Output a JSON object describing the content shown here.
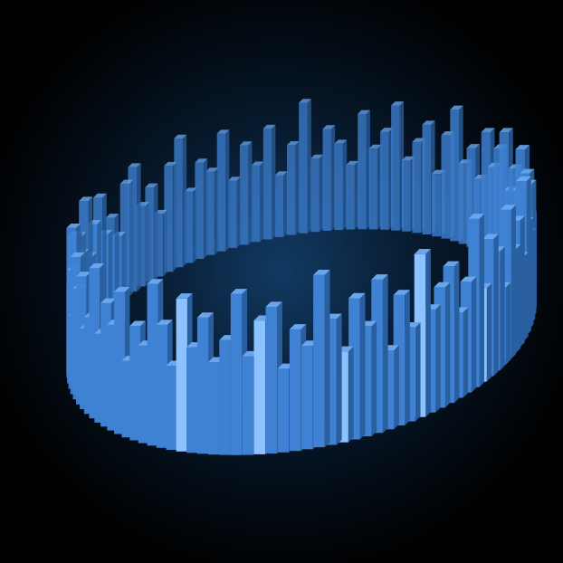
{
  "visualization": {
    "kind": "3d-circular-audio-spectrum",
    "bar_count": 120,
    "bar_levels": [
      0.62,
      0.31,
      0.48,
      0.77,
      0.42,
      0.55,
      0.91,
      0.36,
      0.68,
      0.5,
      0.84,
      0.29,
      0.6,
      0.73,
      0.4,
      0.95,
      0.52,
      0.33,
      0.7,
      0.58,
      0.45,
      0.88,
      0.38,
      0.64,
      0.27,
      0.8,
      0.49,
      0.71,
      0.35,
      0.6,
      0.93,
      0.44,
      0.57,
      0.3,
      0.75,
      0.66,
      0.41,
      0.86,
      0.53,
      0.37,
      0.69,
      0.47,
      0.82,
      0.32,
      0.61,
      0.9,
      0.43,
      0.56,
      0.28,
      0.78,
      0.51,
      0.65,
      0.39,
      0.87,
      0.46,
      0.34,
      0.72,
      0.59,
      0.81,
      0.3,
      0.63,
      0.94,
      0.4,
      0.54,
      0.76,
      0.33,
      0.67,
      0.48,
      0.89,
      0.36,
      0.6,
      0.79,
      0.42,
      0.52,
      0.31,
      0.74,
      0.85,
      0.45,
      0.58,
      0.29,
      0.7,
      0.92,
      0.38,
      0.62,
      0.5,
      0.83,
      0.35,
      0.66,
      0.44,
      0.77,
      0.3,
      0.57,
      0.96,
      0.41,
      0.68,
      0.53,
      0.32,
      0.8,
      0.47,
      0.63,
      0.88,
      0.37,
      0.55,
      0.72,
      0.28,
      0.65,
      0.9,
      0.43,
      0.59,
      0.34,
      0.78,
      0.5,
      0.69,
      0.86,
      0.39,
      0.61,
      0.46,
      0.84,
      0.33,
      0.71
    ],
    "colors": {
      "background": "#000000",
      "glow_center": "#123a63",
      "bar_front": "#3f82d4",
      "bar_side": "#2a5f9f",
      "bar_top": "#6aa6ec",
      "bar_highlight": "#8cc2ff"
    }
  }
}
